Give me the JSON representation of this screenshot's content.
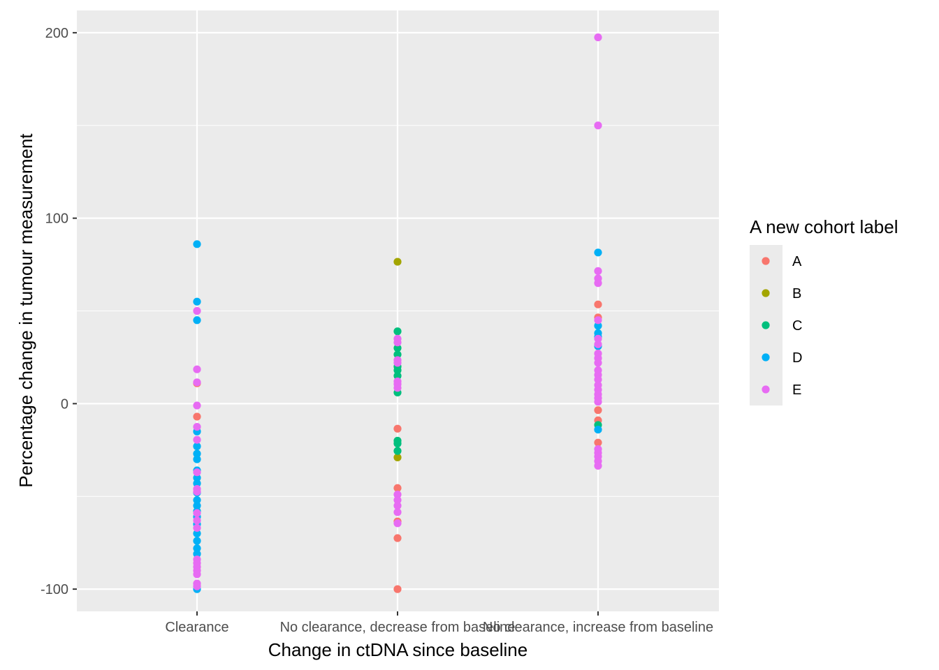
{
  "chart_data": {
    "type": "scatter",
    "title": "",
    "xlabel": "Change in ctDNA since baseline",
    "ylabel": "Percentage change in tumour measurement",
    "categories": [
      "Clearance",
      "No clearance, decrease from baseline",
      "No clearance, increase from baseline"
    ],
    "yticks": [
      "200",
      "100",
      "0",
      "-100"
    ],
    "ylim": [
      -112,
      212
    ],
    "grid": true,
    "legend": {
      "title": "A new cohort label",
      "position": "right",
      "entries": [
        "A",
        "B",
        "C",
        "D",
        "E"
      ]
    },
    "colors": {
      "A": "#F8766D",
      "B": "#A3A500",
      "C": "#00BF7D",
      "D": "#00B0F6",
      "E": "#E76BF3",
      "panel": "#EBEBEB",
      "grid": "#FFFFFF"
    },
    "series": [
      {
        "name": "A",
        "points": [
          {
            "x": "Clearance",
            "y": 11
          },
          {
            "x": "Clearance",
            "y": -7
          },
          {
            "x": "No clearance, decrease from baseline",
            "y": -13.5
          },
          {
            "x": "No clearance, decrease from baseline",
            "y": -45.5
          },
          {
            "x": "No clearance, decrease from baseline",
            "y": -63.5
          },
          {
            "x": "No clearance, decrease from baseline",
            "y": -72.5
          },
          {
            "x": "No clearance, decrease from baseline",
            "y": -100
          },
          {
            "x": "No clearance, increase from baseline",
            "y": 53.5
          },
          {
            "x": "No clearance, increase from baseline",
            "y": 46.5
          },
          {
            "x": "No clearance, increase from baseline",
            "y": -3.5
          },
          {
            "x": "No clearance, increase from baseline",
            "y": -9
          },
          {
            "x": "No clearance, increase from baseline",
            "y": -21
          }
        ]
      },
      {
        "name": "B",
        "points": [
          {
            "x": "No clearance, decrease from baseline",
            "y": 76.5
          },
          {
            "x": "No clearance, decrease from baseline",
            "y": -29
          }
        ]
      },
      {
        "name": "C",
        "points": [
          {
            "x": "No clearance, decrease from baseline",
            "y": 39
          },
          {
            "x": "No clearance, decrease from baseline",
            "y": 30
          },
          {
            "x": "No clearance, decrease from baseline",
            "y": 26.5
          },
          {
            "x": "No clearance, decrease from baseline",
            "y": 20
          },
          {
            "x": "No clearance, decrease from baseline",
            "y": 18
          },
          {
            "x": "No clearance, decrease from baseline",
            "y": 15
          },
          {
            "x": "No clearance, decrease from baseline",
            "y": 6
          },
          {
            "x": "No clearance, decrease from baseline",
            "y": -20
          },
          {
            "x": "No clearance, decrease from baseline",
            "y": -21.5
          },
          {
            "x": "No clearance, decrease from baseline",
            "y": -25.5
          },
          {
            "x": "No clearance, increase from baseline",
            "y": -11.5
          }
        ]
      },
      {
        "name": "D",
        "points": [
          {
            "x": "Clearance",
            "y": 86
          },
          {
            "x": "Clearance",
            "y": 55
          },
          {
            "x": "Clearance",
            "y": 45
          },
          {
            "x": "Clearance",
            "y": -15
          },
          {
            "x": "Clearance",
            "y": -23
          },
          {
            "x": "Clearance",
            "y": -27
          },
          {
            "x": "Clearance",
            "y": -30
          },
          {
            "x": "Clearance",
            "y": -36
          },
          {
            "x": "Clearance",
            "y": -40
          },
          {
            "x": "Clearance",
            "y": -43
          },
          {
            "x": "Clearance",
            "y": -48
          },
          {
            "x": "Clearance",
            "y": -52
          },
          {
            "x": "Clearance",
            "y": -55
          },
          {
            "x": "Clearance",
            "y": -58
          },
          {
            "x": "Clearance",
            "y": -61
          },
          {
            "x": "Clearance",
            "y": -65
          },
          {
            "x": "Clearance",
            "y": -70
          },
          {
            "x": "Clearance",
            "y": -74
          },
          {
            "x": "Clearance",
            "y": -78
          },
          {
            "x": "Clearance",
            "y": -81
          },
          {
            "x": "Clearance",
            "y": -100
          },
          {
            "x": "No clearance, increase from baseline",
            "y": 81.5
          },
          {
            "x": "No clearance, increase from baseline",
            "y": 42
          },
          {
            "x": "No clearance, increase from baseline",
            "y": 38
          },
          {
            "x": "No clearance, increase from baseline",
            "y": 36
          },
          {
            "x": "No clearance, increase from baseline",
            "y": 31
          },
          {
            "x": "No clearance, increase from baseline",
            "y": -14
          }
        ]
      },
      {
        "name": "E",
        "points": [
          {
            "x": "Clearance",
            "y": 50
          },
          {
            "x": "Clearance",
            "y": 18.5
          },
          {
            "x": "Clearance",
            "y": 11.5
          },
          {
            "x": "Clearance",
            "y": -1
          },
          {
            "x": "Clearance",
            "y": -12.5
          },
          {
            "x": "Clearance",
            "y": -19.5
          },
          {
            "x": "Clearance",
            "y": -37
          },
          {
            "x": "Clearance",
            "y": -46
          },
          {
            "x": "Clearance",
            "y": -47.5
          },
          {
            "x": "Clearance",
            "y": -59
          },
          {
            "x": "Clearance",
            "y": -63
          },
          {
            "x": "Clearance",
            "y": -67
          },
          {
            "x": "Clearance",
            "y": -84
          },
          {
            "x": "Clearance",
            "y": -86
          },
          {
            "x": "Clearance",
            "y": -88
          },
          {
            "x": "Clearance",
            "y": -90
          },
          {
            "x": "Clearance",
            "y": -92
          },
          {
            "x": "Clearance",
            "y": -97
          },
          {
            "x": "Clearance",
            "y": -98.5
          },
          {
            "x": "No clearance, decrease from baseline",
            "y": 35
          },
          {
            "x": "No clearance, decrease from baseline",
            "y": 33
          },
          {
            "x": "No clearance, decrease from baseline",
            "y": 23.5
          },
          {
            "x": "No clearance, decrease from baseline",
            "y": 22
          },
          {
            "x": "No clearance, decrease from baseline",
            "y": 12
          },
          {
            "x": "No clearance, decrease from baseline",
            "y": 10.5
          },
          {
            "x": "No clearance, decrease from baseline",
            "y": 8.5
          },
          {
            "x": "No clearance, decrease from baseline",
            "y": -49
          },
          {
            "x": "No clearance, decrease from baseline",
            "y": -52
          },
          {
            "x": "No clearance, decrease from baseline",
            "y": -55
          },
          {
            "x": "No clearance, decrease from baseline",
            "y": -58.5
          },
          {
            "x": "No clearance, decrease from baseline",
            "y": -64.5
          },
          {
            "x": "No clearance, increase from baseline",
            "y": 197.5
          },
          {
            "x": "No clearance, increase from baseline",
            "y": 150
          },
          {
            "x": "No clearance, increase from baseline",
            "y": 71.5
          },
          {
            "x": "No clearance, increase from baseline",
            "y": 67.5
          },
          {
            "x": "No clearance, increase from baseline",
            "y": 65
          },
          {
            "x": "No clearance, increase from baseline",
            "y": 45
          },
          {
            "x": "No clearance, increase from baseline",
            "y": 35
          },
          {
            "x": "No clearance, increase from baseline",
            "y": 32
          },
          {
            "x": "No clearance, increase from baseline",
            "y": 27
          },
          {
            "x": "No clearance, increase from baseline",
            "y": 24.5
          },
          {
            "x": "No clearance, increase from baseline",
            "y": 22
          },
          {
            "x": "No clearance, increase from baseline",
            "y": 18
          },
          {
            "x": "No clearance, increase from baseline",
            "y": 15.5
          },
          {
            "x": "No clearance, increase from baseline",
            "y": 13
          },
          {
            "x": "No clearance, increase from baseline",
            "y": 10
          },
          {
            "x": "No clearance, increase from baseline",
            "y": 7.5
          },
          {
            "x": "No clearance, increase from baseline",
            "y": 5
          },
          {
            "x": "No clearance, increase from baseline",
            "y": 3
          },
          {
            "x": "No clearance, increase from baseline",
            "y": 1
          },
          {
            "x": "No clearance, increase from baseline",
            "y": -24.5
          },
          {
            "x": "No clearance, increase from baseline",
            "y": -26.5
          },
          {
            "x": "No clearance, increase from baseline",
            "y": -28.5
          },
          {
            "x": "No clearance, increase from baseline",
            "y": -31
          },
          {
            "x": "No clearance, increase from baseline",
            "y": -33.5
          }
        ]
      }
    ]
  }
}
